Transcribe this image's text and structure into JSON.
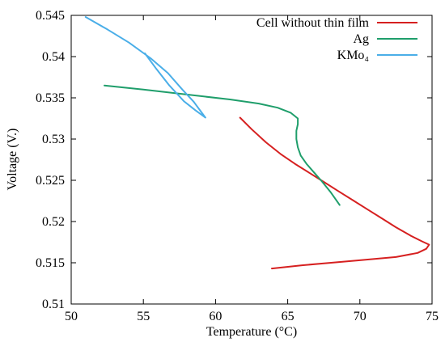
{
  "chart_data": {
    "type": "line",
    "xlabel": "Temperature (°C)",
    "ylabel": "Voltage (V.)",
    "xlim": [
      50,
      75
    ],
    "ylim": [
      0.51,
      0.545
    ],
    "x_ticks": [
      50,
      55,
      60,
      65,
      70,
      75
    ],
    "y_ticks": [
      0.51,
      0.515,
      0.52,
      0.525,
      0.53,
      0.535,
      0.54,
      0.545
    ],
    "x_tick_labels": [
      "50",
      "55",
      "60",
      "65",
      "70",
      "75"
    ],
    "y_tick_labels": [
      "0.51",
      "0.515",
      "0.52",
      "0.525",
      "0.53",
      "0.535",
      "0.54",
      "0.545"
    ],
    "grid": false,
    "legend_position": "top-right",
    "series": [
      {
        "name": "Cell without thin film",
        "color": "#d62020",
        "points": [
          [
            61.7,
            0.5326
          ],
          [
            62.5,
            0.5312
          ],
          [
            63.5,
            0.5296
          ],
          [
            64.5,
            0.5282
          ],
          [
            65.5,
            0.527
          ],
          [
            66.5,
            0.5259
          ],
          [
            67.5,
            0.5248
          ],
          [
            68.5,
            0.5237
          ],
          [
            69.5,
            0.5226
          ],
          [
            70.5,
            0.5215
          ],
          [
            71.5,
            0.5204
          ],
          [
            72.5,
            0.5193
          ],
          [
            73.5,
            0.5183
          ],
          [
            74.3,
            0.5176
          ],
          [
            74.8,
            0.5172
          ],
          [
            74.6,
            0.5167
          ],
          [
            74.0,
            0.5162
          ],
          [
            72.5,
            0.5157
          ],
          [
            70.0,
            0.5153
          ],
          [
            68.0,
            0.515
          ],
          [
            66.0,
            0.5147
          ],
          [
            63.9,
            0.5143
          ]
        ]
      },
      {
        "name": "Ag",
        "color": "#1f9e6b",
        "points": [
          [
            52.3,
            0.5365
          ],
          [
            55.0,
            0.536
          ],
          [
            58.0,
            0.5354
          ],
          [
            61.0,
            0.5348
          ],
          [
            63.0,
            0.5343
          ],
          [
            64.3,
            0.5338
          ],
          [
            65.2,
            0.5332
          ],
          [
            65.7,
            0.5325
          ],
          [
            65.7,
            0.5318
          ],
          [
            65.6,
            0.531
          ],
          [
            65.6,
            0.53
          ],
          [
            65.7,
            0.529
          ],
          [
            65.9,
            0.528
          ],
          [
            66.3,
            0.527
          ],
          [
            66.8,
            0.526
          ],
          [
            67.4,
            0.5248
          ],
          [
            68.0,
            0.5235
          ],
          [
            68.6,
            0.522
          ]
        ]
      },
      {
        "name": "KMo₄",
        "color": "#4aaee8",
        "points": [
          [
            51.0,
            0.5448
          ],
          [
            52.5,
            0.5433
          ],
          [
            54.0,
            0.5417
          ],
          [
            55.5,
            0.5398
          ],
          [
            56.7,
            0.538
          ],
          [
            57.7,
            0.536
          ],
          [
            58.5,
            0.5345
          ],
          [
            59.3,
            0.5326
          ],
          [
            58.6,
            0.5335
          ],
          [
            57.8,
            0.5346
          ],
          [
            56.8,
            0.5365
          ],
          [
            55.9,
            0.5385
          ],
          [
            55.1,
            0.5404
          ]
        ]
      }
    ]
  }
}
